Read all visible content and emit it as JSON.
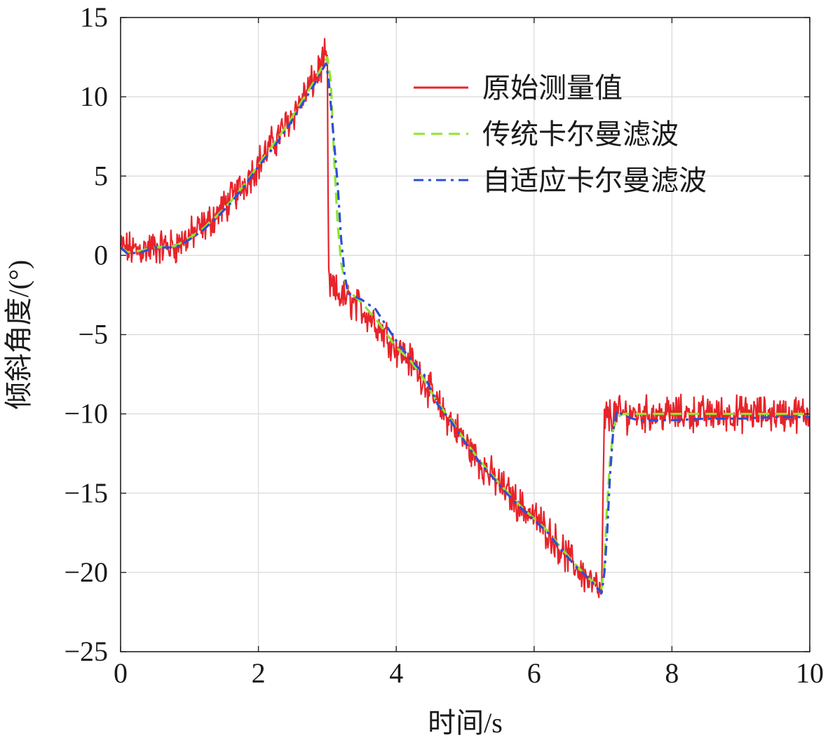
{
  "chart_data": {
    "type": "line",
    "xlabel": "时间/s",
    "ylabel": "倾斜角度/(°)",
    "xlim": [
      0,
      10
    ],
    "ylim": [
      -25,
      15
    ],
    "xticks": [
      0,
      2,
      4,
      6,
      8,
      10
    ],
    "yticks": [
      15,
      10,
      5,
      0,
      -5,
      -10,
      -15,
      -20,
      -25
    ],
    "xtick_labels": [
      "0",
      "2",
      "4",
      "6",
      "8",
      "10"
    ],
    "ytick_labels": [
      "15",
      "10",
      "5",
      "0",
      "−5",
      "−10",
      "−15",
      "−20",
      "−25"
    ],
    "grid": true,
    "legend_position": "top-right",
    "series": [
      {
        "name": "原始测量值",
        "color": "#e8232a",
        "style": "solid",
        "noisy": true,
        "points": [
          [
            0,
            0.5
          ],
          [
            0.2,
            0.3
          ],
          [
            0.5,
            0.5
          ],
          [
            0.8,
            0.6
          ],
          [
            1.0,
            1.2
          ],
          [
            1.2,
            1.8
          ],
          [
            1.4,
            2.6
          ],
          [
            1.6,
            3.5
          ],
          [
            1.8,
            4.6
          ],
          [
            2.0,
            5.8
          ],
          [
            2.2,
            7.0
          ],
          [
            2.4,
            8.2
          ],
          [
            2.6,
            9.6
          ],
          [
            2.8,
            11.0
          ],
          [
            2.95,
            12.3
          ],
          [
            3.0,
            12.6
          ],
          [
            3.0,
            10.0
          ],
          [
            3.02,
            -1.8
          ],
          [
            3.1,
            -2.3
          ],
          [
            3.3,
            -2.8
          ],
          [
            3.5,
            -3.4
          ],
          [
            3.7,
            -4.2
          ],
          [
            4.0,
            -5.8
          ],
          [
            4.2,
            -6.6
          ],
          [
            4.4,
            -7.8
          ],
          [
            4.6,
            -9.5
          ],
          [
            4.8,
            -10.5
          ],
          [
            5.0,
            -11.8
          ],
          [
            5.2,
            -13.0
          ],
          [
            5.4,
            -14.0
          ],
          [
            5.6,
            -14.9
          ],
          [
            5.8,
            -15.8
          ],
          [
            6.0,
            -16.5
          ],
          [
            6.2,
            -17.4
          ],
          [
            6.4,
            -18.6
          ],
          [
            6.6,
            -19.6
          ],
          [
            6.8,
            -20.5
          ],
          [
            6.95,
            -21.2
          ],
          [
            6.98,
            -21.4
          ],
          [
            7.0,
            -15.0
          ],
          [
            7.02,
            -10.2
          ],
          [
            7.2,
            -10.0
          ],
          [
            7.5,
            -10.0
          ],
          [
            8.0,
            -10.0
          ],
          [
            8.5,
            -10.0
          ],
          [
            9.0,
            -10.0
          ],
          [
            9.5,
            -10.0
          ],
          [
            10.0,
            -10.0
          ]
        ]
      },
      {
        "name": "传统卡尔曼滤波",
        "color": "#8ee62e",
        "style": "dashed",
        "points": [
          [
            0,
            0.5
          ],
          [
            0.1,
            0.2
          ],
          [
            0.3,
            0.3
          ],
          [
            0.5,
            0.5
          ],
          [
            0.8,
            0.6
          ],
          [
            1.0,
            1.1
          ],
          [
            1.2,
            1.7
          ],
          [
            1.4,
            2.5
          ],
          [
            1.6,
            3.4
          ],
          [
            1.8,
            4.5
          ],
          [
            2.0,
            5.7
          ],
          [
            2.2,
            6.9
          ],
          [
            2.4,
            8.1
          ],
          [
            2.6,
            9.5
          ],
          [
            2.8,
            10.9
          ],
          [
            3.0,
            12.5
          ],
          [
            3.05,
            11.0
          ],
          [
            3.1,
            6.0
          ],
          [
            3.15,
            2.0
          ],
          [
            3.2,
            -0.5
          ],
          [
            3.25,
            -1.5
          ],
          [
            3.3,
            -2.2
          ],
          [
            3.5,
            -3.0
          ],
          [
            3.7,
            -4.0
          ],
          [
            4.0,
            -5.8
          ],
          [
            4.2,
            -6.6
          ],
          [
            4.4,
            -7.8
          ],
          [
            4.6,
            -9.3
          ],
          [
            4.8,
            -10.4
          ],
          [
            5.0,
            -11.7
          ],
          [
            5.2,
            -12.9
          ],
          [
            5.4,
            -13.9
          ],
          [
            5.6,
            -14.9
          ],
          [
            5.8,
            -15.8
          ],
          [
            6.0,
            -16.6
          ],
          [
            6.2,
            -17.4
          ],
          [
            6.4,
            -18.5
          ],
          [
            6.6,
            -19.5
          ],
          [
            6.8,
            -20.4
          ],
          [
            6.98,
            -21.0
          ],
          [
            7.02,
            -19.5
          ],
          [
            7.05,
            -16.5
          ],
          [
            7.1,
            -13.0
          ],
          [
            7.15,
            -11.0
          ],
          [
            7.2,
            -10.2
          ],
          [
            7.3,
            -10.0
          ],
          [
            7.5,
            -10.0
          ],
          [
            8.0,
            -10.0
          ],
          [
            8.5,
            -10.0
          ],
          [
            9.0,
            -10.0
          ],
          [
            9.5,
            -10.0
          ],
          [
            10.0,
            -10.0
          ]
        ]
      },
      {
        "name": "自适应卡尔曼滤波",
        "color": "#2c4fd6",
        "style": "dashdot",
        "points": [
          [
            0,
            0.5
          ],
          [
            0.1,
            0.1
          ],
          [
            0.3,
            0.2
          ],
          [
            0.5,
            0.5
          ],
          [
            0.8,
            0.5
          ],
          [
            1.0,
            1.0
          ],
          [
            1.2,
            1.6
          ],
          [
            1.4,
            2.4
          ],
          [
            1.6,
            3.3
          ],
          [
            1.8,
            4.4
          ],
          [
            2.0,
            5.6
          ],
          [
            2.2,
            6.7
          ],
          [
            2.4,
            7.9
          ],
          [
            2.6,
            9.3
          ],
          [
            2.8,
            10.7
          ],
          [
            2.98,
            12.1
          ],
          [
            3.02,
            11.0
          ],
          [
            3.08,
            8.0
          ],
          [
            3.15,
            4.5
          ],
          [
            3.2,
            1.0
          ],
          [
            3.25,
            -1.2
          ],
          [
            3.3,
            -2.4
          ],
          [
            3.5,
            -2.8
          ],
          [
            3.7,
            -3.4
          ],
          [
            4.0,
            -5.4
          ],
          [
            4.2,
            -6.5
          ],
          [
            4.4,
            -7.5
          ],
          [
            4.6,
            -9.4
          ],
          [
            4.8,
            -10.5
          ],
          [
            5.0,
            -11.8
          ],
          [
            5.2,
            -13.0
          ],
          [
            5.4,
            -14.0
          ],
          [
            5.6,
            -15.0
          ],
          [
            5.8,
            -15.9
          ],
          [
            6.0,
            -16.7
          ],
          [
            6.2,
            -17.5
          ],
          [
            6.4,
            -18.6
          ],
          [
            6.6,
            -19.6
          ],
          [
            6.8,
            -20.4
          ],
          [
            6.98,
            -21.3
          ],
          [
            7.02,
            -20.0
          ],
          [
            7.06,
            -17.5
          ],
          [
            7.1,
            -14.0
          ],
          [
            7.15,
            -11.0
          ],
          [
            7.2,
            -9.8
          ],
          [
            7.3,
            -10.1
          ],
          [
            7.5,
            -10.4
          ],
          [
            8.0,
            -10.4
          ],
          [
            8.5,
            -10.3
          ],
          [
            9.0,
            -10.3
          ],
          [
            9.5,
            -10.2
          ],
          [
            10.0,
            -10.2
          ]
        ]
      }
    ]
  }
}
